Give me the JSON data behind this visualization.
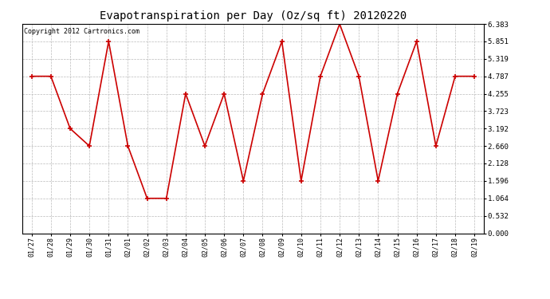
{
  "title": "Evapotranspiration per Day (Oz/sq ft) 20120220",
  "copyright": "Copyright 2012 Cartronics.com",
  "dates": [
    "01/27",
    "01/28",
    "01/29",
    "01/30",
    "01/31",
    "02/01",
    "02/02",
    "02/03",
    "02/04",
    "02/05",
    "02/06",
    "02/07",
    "02/08",
    "02/09",
    "02/10",
    "02/11",
    "02/12",
    "02/13",
    "02/14",
    "02/15",
    "02/16",
    "02/17",
    "02/18",
    "02/19"
  ],
  "values": [
    4.787,
    4.787,
    3.192,
    2.66,
    5.851,
    2.66,
    1.064,
    1.064,
    4.255,
    2.66,
    4.255,
    1.596,
    4.255,
    5.851,
    1.596,
    4.787,
    6.383,
    4.787,
    1.596,
    4.255,
    5.851,
    2.66,
    4.787,
    4.787
  ],
  "yticks": [
    0.0,
    0.532,
    1.064,
    1.596,
    2.128,
    2.66,
    3.192,
    3.723,
    4.255,
    4.787,
    5.319,
    5.851,
    6.383
  ],
  "ymin": 0.0,
  "ymax": 6.383,
  "line_color": "#cc0000",
  "marker": "+",
  "marker_size": 4,
  "background_color": "#ffffff",
  "grid_color": "#bbbbbb",
  "title_fontsize": 10,
  "copyright_fontsize": 6,
  "xtick_fontsize": 6,
  "ytick_fontsize": 6.5
}
